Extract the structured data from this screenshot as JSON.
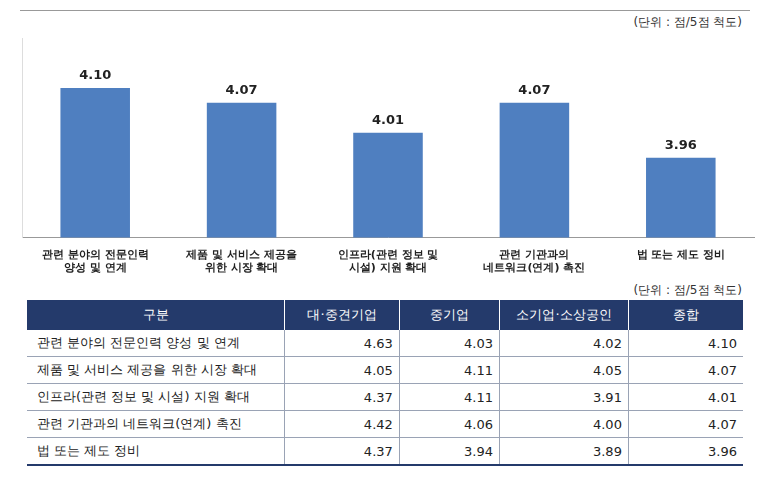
{
  "chart_data": {
    "type": "bar",
    "subtitle": "(단위 : 점/5점 척도)",
    "categories": [
      [
        "관련 분야의 전문인력",
        "양성 및 연계"
      ],
      [
        "제품 및 서비스 제공을",
        "위한 시장 확대"
      ],
      [
        "인프라(관련 정보 및",
        "시설) 지원 확대"
      ],
      [
        "관련 기관과의",
        "네트워크(연계) 촉진"
      ],
      [
        "법 또는 제도 정비"
      ]
    ],
    "values": [
      4.1,
      4.07,
      4.01,
      4.07,
      3.96
    ],
    "value_labels": [
      "4.10",
      "4.07",
      "4.01",
      "4.07",
      "3.96"
    ],
    "color": "#4f7fc0",
    "ylim": [
      3.8,
      4.2
    ],
    "grid": false,
    "data_labels": true,
    "tick_labels": "x"
  },
  "table": {
    "unit": "(단위 : 점/5점 척도)",
    "header": [
      "구분",
      "대·중견기업",
      "중기업",
      "소기업·소상공인",
      "종합"
    ],
    "rows": [
      [
        "관련 분야의 전문인력 양성 및 연계",
        "4.63",
        "4.03",
        "4.02",
        "4.10"
      ],
      [
        "제품 및 서비스 제공을 위한 시장 확대",
        "4.05",
        "4.11",
        "4.05",
        "4.07"
      ],
      [
        "인프라(관련 정보 및 시설) 지원 확대",
        "4.37",
        "4.11",
        "3.91",
        "4.01"
      ],
      [
        "관련 기관과의 네트워크(연계) 촉진",
        "4.42",
        "4.06",
        "4.00",
        "4.07"
      ],
      [
        "법 또는 제도 정비",
        "4.37",
        "3.94",
        "3.89",
        "3.96"
      ]
    ]
  }
}
